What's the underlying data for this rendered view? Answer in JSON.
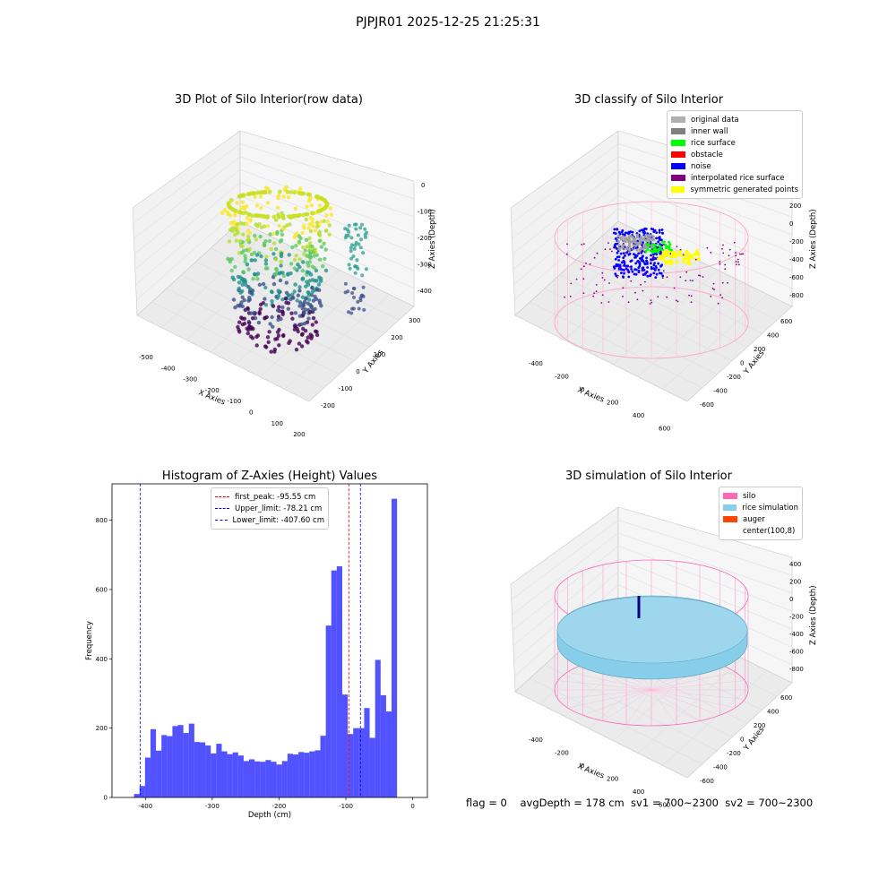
{
  "suptitle": "PJPJR01 2025-12-25 21:25:31",
  "panel1": {
    "title": "3D Plot of Silo Interior(row data)",
    "x_label": "X Axies",
    "y_label": "Y Axies",
    "z_label": "Z Axies (Depth)",
    "x_ticks": [
      "-500",
      "-400",
      "-300",
      "-200",
      "-100",
      "0",
      "100",
      "200"
    ],
    "y_ticks": [
      "-200",
      "-100",
      "0",
      "100",
      "200",
      "300"
    ],
    "z_ticks": [
      "0",
      "-100",
      "-200",
      "-300",
      "-400"
    ]
  },
  "panel2": {
    "title": "3D classify of Silo Interior",
    "x_label": "X Axies",
    "y_label": "Y Axies",
    "z_label": "Z Axies (Depth)",
    "x_ticks": [
      "-400",
      "-200",
      "0",
      "200",
      "400",
      "600"
    ],
    "y_ticks": [
      "-600",
      "-400",
      "-200",
      "0",
      "200",
      "400",
      "600"
    ],
    "z_ticks": [
      "200",
      "0",
      "-200",
      "-400",
      "-600",
      "-800"
    ],
    "legend": [
      {
        "label": "original data",
        "color": "#b0b0b0"
      },
      {
        "label": "inner wall",
        "color": "#808080"
      },
      {
        "label": "rice surface",
        "color": "#00ff00"
      },
      {
        "label": "obstacle",
        "color": "#ff0000"
      },
      {
        "label": "noise",
        "color": "#0000ff"
      },
      {
        "label": "interpolated rice surface",
        "color": "#800080"
      },
      {
        "label": "symmetric generated points",
        "color": "#ffff00"
      }
    ]
  },
  "panel3": {
    "title": "Histogram of Z-Axies (Height) Values",
    "legend": [
      {
        "label": "first_peak: -95.55 cm",
        "color": "#ff0000"
      },
      {
        "label": "Upper_limit: -78.21 cm",
        "color": "#0000ff"
      },
      {
        "label": "Lower_limit: -407.60 cm",
        "color": "#0000ff"
      }
    ]
  },
  "panel4": {
    "title": "3D simulation of Silo Interior",
    "x_label": "X Axies",
    "y_label": "Y Axies",
    "z_label": "Z Axies (Depth)",
    "x_ticks": [
      "-400",
      "-200",
      "0",
      "200",
      "400",
      "600"
    ],
    "y_ticks": [
      "-600",
      "-400",
      "-200",
      "0",
      "200",
      "400",
      "600"
    ],
    "z_ticks": [
      "400",
      "200",
      "0",
      "-200",
      "-400",
      "-600",
      "-800"
    ],
    "legend": [
      {
        "label": "silo",
        "color": "#ff69b4"
      },
      {
        "label": "rice simulation",
        "color": "#87ceeb"
      },
      {
        "label": "auger",
        "color": "#ff4500"
      },
      {
        "label": "center(100,8)",
        "color": "#ffffff"
      }
    ]
  },
  "footer": "flag = 0    avgDepth = 178 cm  sv1 = 700~2300  sv2 = 700~2300",
  "chart_data": {
    "type": "bar",
    "title": "Histogram of Z-Axies (Height) Values",
    "xlabel": "Depth (cm)",
    "ylabel": "Frequency",
    "xlim": [
      -450,
      22
    ],
    "ylim": [
      0,
      905
    ],
    "x_ticks": [
      -400,
      -300,
      -200,
      -100,
      0
    ],
    "y_ticks": [
      0,
      200,
      400,
      600,
      800
    ],
    "bar_color": "#0000ff",
    "bin_width": 8.2,
    "bin_left_edges": [
      -417,
      -408.8,
      -400.6,
      -392.4,
      -384.2,
      -376,
      -367.8,
      -359.6,
      -351.4,
      -343.2,
      -335,
      -326.8,
      -318.6,
      -310.4,
      -302.2,
      -294,
      -285.8,
      -277.6,
      -269.4,
      -261.2,
      -253,
      -244.8,
      -236.6,
      -228.4,
      -220.2,
      -212,
      -203.8,
      -195.6,
      -187.4,
      -179.2,
      -171,
      -162.8,
      -154.6,
      -146.4,
      -138.2,
      -130,
      -121.8,
      -113.6,
      -105.4,
      -97.2,
      -89,
      -80.8,
      -72.6,
      -64.4,
      -56.2,
      -48,
      -39.8,
      -31.6,
      -23.4,
      -15.2,
      -7
    ],
    "values": [
      10,
      33,
      115,
      197,
      135,
      180,
      177,
      206,
      209,
      186,
      213,
      160,
      159,
      150,
      127,
      155,
      133,
      125,
      130,
      121,
      105,
      110,
      104,
      103,
      108,
      103,
      95,
      105,
      126,
      124,
      131,
      129,
      133,
      136,
      178,
      496,
      655,
      667,
      297,
      183,
      200,
      200,
      258,
      172,
      397,
      295,
      248,
      862,
      0,
      0,
      0
    ],
    "lines": [
      {
        "label": "first_peak: -95.55 cm",
        "x": -95.55,
        "color": "#ff0000"
      },
      {
        "label": "Upper_limit: -78.21 cm",
        "x": -78.21,
        "color": "#0000ff"
      },
      {
        "label": "Lower_limit: -407.60 cm",
        "x": -407.6,
        "color": "#0000ff"
      }
    ]
  }
}
